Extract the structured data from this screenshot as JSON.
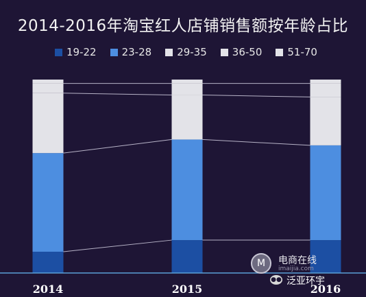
{
  "chart_data": {
    "type": "bar",
    "stacked": true,
    "normalized": true,
    "title": "2014-2016年淘宝红人店铺销售额按年龄占比",
    "categories": [
      "2014",
      "2015",
      "2016"
    ],
    "series": [
      {
        "name": "19-22",
        "color": "#1c4fa3",
        "values": [
          0.11,
          0.17,
          0.17
        ]
      },
      {
        "name": "23-28",
        "color": "#4d8ee0",
        "values": [
          0.51,
          0.52,
          0.49
        ]
      },
      {
        "name": "29-35",
        "color": "#e3e3e8",
        "values": [
          0.31,
          0.23,
          0.25
        ]
      },
      {
        "name": "36-50",
        "color": "#e3e3e8",
        "values": [
          0.05,
          0.06,
          0.07
        ]
      },
      {
        "name": "51-70",
        "color": "#e3e3e8",
        "values": [
          0.02,
          0.02,
          0.02
        ]
      }
    ],
    "ylim": [
      0,
      1
    ],
    "grid": false,
    "legend_position": "top"
  },
  "watermark": {
    "badge": "M",
    "name": "电商在线",
    "url": "imaijia.com",
    "account": "泛亚环宇",
    "wechat_icon": "wechat-icon"
  }
}
